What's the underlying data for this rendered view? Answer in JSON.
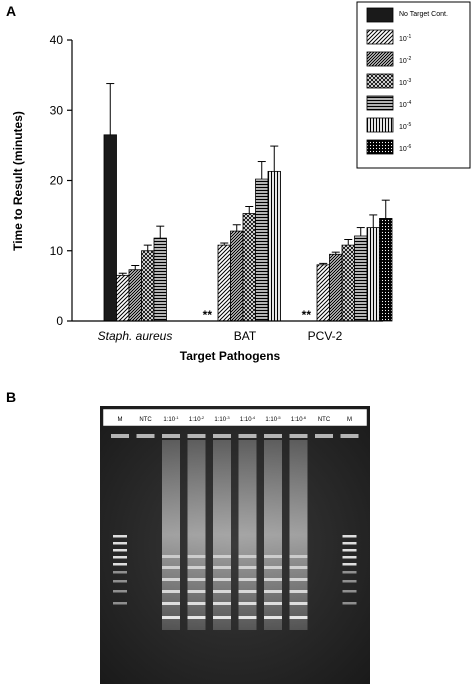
{
  "panel_a_label": "A",
  "panel_b_label": "B",
  "chart_data": {
    "type": "bar",
    "categories": [
      "Staph. aureus",
      "BAT",
      "PCV-2"
    ],
    "xlabel": "Target Pathogens",
    "ylabel": "Time to Result (minutes)",
    "ylim": [
      0,
      40
    ],
    "yticks": [
      0,
      10,
      20,
      30,
      40
    ],
    "grid": false,
    "legend_position": "top-right",
    "missing_marker": "**",
    "series": [
      {
        "name": "No Target Cont.",
        "values": [
          26.5,
          null,
          null
        ],
        "errors": [
          7.3,
          null,
          null
        ]
      },
      {
        "name": "10",
        "exp": "-1",
        "values": [
          6.5,
          10.8,
          8.0
        ],
        "errors": [
          0.3,
          0.3,
          0.2
        ]
      },
      {
        "name": "10",
        "exp": "-2",
        "values": [
          7.3,
          12.8,
          9.5
        ],
        "errors": [
          0.6,
          0.9,
          0.3
        ]
      },
      {
        "name": "10",
        "exp": "-3",
        "values": [
          10.0,
          15.3,
          10.8
        ],
        "errors": [
          0.8,
          1.0,
          0.8
        ]
      },
      {
        "name": "10",
        "exp": "-4",
        "values": [
          11.8,
          20.2,
          12.1
        ],
        "errors": [
          1.7,
          2.5,
          1.2
        ]
      },
      {
        "name": "10",
        "exp": "-5",
        "values": [
          null,
          21.3,
          13.3
        ],
        "errors": [
          null,
          3.6,
          1.8
        ]
      },
      {
        "name": "10",
        "exp": "-6",
        "values": [
          null,
          null,
          14.6
        ],
        "errors": [
          null,
          null,
          2.6
        ]
      }
    ]
  },
  "gel": {
    "lanes": [
      {
        "base": "M",
        "sup": ""
      },
      {
        "base": "NTC",
        "sup": ""
      },
      {
        "base": "1:10",
        "sup": "-1"
      },
      {
        "base": "1:10",
        "sup": "-2"
      },
      {
        "base": "1:10",
        "sup": "-3"
      },
      {
        "base": "1:10",
        "sup": "-4"
      },
      {
        "base": "1:10",
        "sup": "-5"
      },
      {
        "base": "1:10",
        "sup": "-6"
      },
      {
        "base": "NTC",
        "sup": ""
      },
      {
        "base": "M",
        "sup": ""
      }
    ]
  }
}
